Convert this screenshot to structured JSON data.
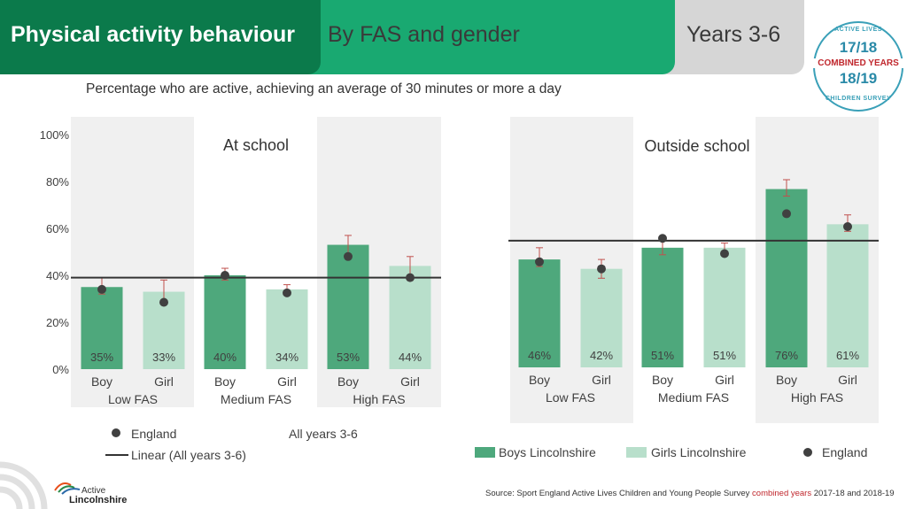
{
  "header": {
    "title": "Physical activity behaviour",
    "subtitle": "By FAS and gender",
    "years": "Years 3-6"
  },
  "subtitle": "Percentage who are active, achieving an average of 30 minutes or more a day",
  "badge": {
    "top": "ACTIVE LIVES",
    "year1": "17/18",
    "combined": "COMBINED YEARS",
    "year2": "18/19",
    "bottom": "CHILDREN SURVEY"
  },
  "logo": {
    "line1": "Active",
    "line2": "Lincolnshire"
  },
  "source": {
    "prefix": "Source: Sport England Active Lives Children and Young People Survey ",
    "highlight": "combined years",
    "suffix": " 2017-18 and 2018-19"
  },
  "colors": {
    "boys": "#4ea87c",
    "girls": "#b8dfcb",
    "england": "#404040",
    "error": "#c0504d",
    "band": "#f0f0f0",
    "line": "#333333"
  },
  "legends": {
    "left": {
      "england": "England",
      "linear": "Linear (All years 3-6)",
      "all_years": "All years 3-6"
    },
    "right": {
      "boys": "Boys Lincolnshire",
      "girls": "Girls Lincolnshire",
      "england": "England"
    }
  },
  "chart_data": [
    {
      "type": "bar",
      "title": "At school",
      "groups": [
        "Low FAS",
        "Medium FAS",
        "High FAS"
      ],
      "categories": [
        "Boy",
        "Girl",
        "Boy",
        "Girl",
        "Boy",
        "Girl"
      ],
      "values": [
        35,
        33,
        40,
        34,
        53,
        44
      ],
      "value_labels": [
        "35%",
        "33%",
        "40%",
        "34%",
        "53%",
        "44%"
      ],
      "error_low": [
        32,
        28,
        38,
        32,
        49,
        38
      ],
      "error_high": [
        39,
        38,
        43,
        36,
        57,
        48
      ],
      "england": [
        34,
        28.5,
        40,
        32.5,
        48,
        39
      ],
      "line_value": 39,
      "ylim": [
        0,
        100
      ],
      "yticks": [
        "0%",
        "20%",
        "40%",
        "60%",
        "80%",
        "100%"
      ]
    },
    {
      "type": "bar",
      "title": "Outside school",
      "groups": [
        "Low FAS",
        "Medium FAS",
        "High FAS"
      ],
      "categories": [
        "Boy",
        "Girl",
        "Boy",
        "Girl",
        "Boy",
        "Girl"
      ],
      "values": [
        46,
        42,
        51,
        51,
        76,
        61
      ],
      "value_labels": [
        "46%",
        "42%",
        "51%",
        "51%",
        "76%",
        "61%"
      ],
      "error_low": [
        43,
        38,
        48,
        48,
        73,
        58
      ],
      "error_high": [
        51,
        46,
        54,
        53,
        80,
        65
      ],
      "england": [
        45,
        42,
        55,
        48.5,
        65.5,
        60
      ],
      "line_value": 54,
      "ylim": [
        0,
        100
      ]
    }
  ]
}
